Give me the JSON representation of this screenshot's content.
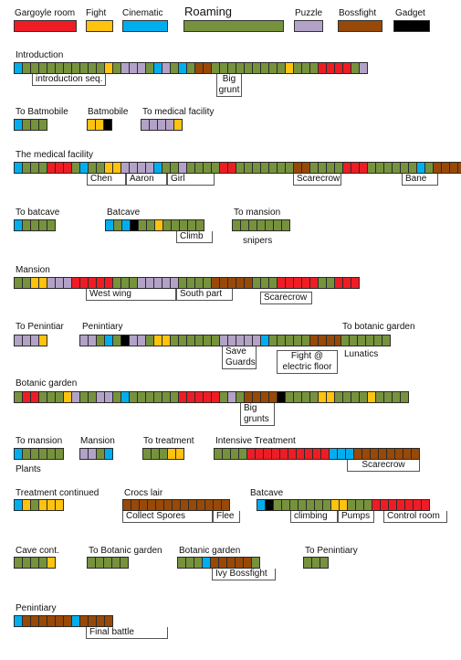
{
  "legend": [
    {
      "label": "Gargoyle room",
      "color": "#ee1c24"
    },
    {
      "label": "Fight",
      "color": "#ffc20e"
    },
    {
      "label": "Cinematic",
      "color": "#00aeef"
    },
    {
      "label": "Roaming",
      "color": "#76923c"
    },
    {
      "label": "Puzzle",
      "color": "#b3a2c7"
    },
    {
      "label": "Bossfight",
      "color": "#984807"
    },
    {
      "label": "Gadget",
      "color": "#000000"
    }
  ],
  "sections": [
    {
      "title": "Introduction",
      "seq": "CRRRRRRRRRRFRPPPRCPRCRBBRRRRRRRRRFRRRGGGGRP"
    },
    {
      "title": "To Batmobile",
      "seq": "CRRR"
    },
    {
      "title": "Batmobile",
      "seq": "FFX"
    },
    {
      "title": "To medical facility",
      "seq": "PPPPF"
    },
    {
      "title": "The medical facility",
      "seq": "CRRRGGGRCRRFFPPPPCRRPRRRRGGRRRRRRRBBRRRRGGGRRRRRRCRBBBB"
    },
    {
      "title": "To batcave",
      "seq": "CRRRR"
    },
    {
      "title": "Batcave",
      "seq": "CRCXRRFRRRRR"
    },
    {
      "title": "To mansion",
      "seq": "RRRRRRR"
    },
    {
      "title": "Mansion",
      "seq": "RRFFPPPGGGGGRRRPPPPPRRRRBBBBBRRRGGGGGRRGGG"
    },
    {
      "title": "To Penintiar",
      "seq": "PPPF"
    },
    {
      "title": "Penintiary",
      "seq": "PPRCRXPPRFFRRRRRRPPPPPCRRRRRBBBBC"
    },
    {
      "title": "To botanic garden",
      "seq": "RRRRRR"
    },
    {
      "title": "Botanic garden",
      "seq": "RGGRRRFPRRPPRCRRRRRRGGGGGRPRBBBBXRRRRFFRRRRFRRRR"
    },
    {
      "title": "To mansion",
      "seq": "CRRRRR"
    },
    {
      "title": "Mansion",
      "seq": "PPRC"
    },
    {
      "title": "To treatment",
      "seq": "RRRFF"
    },
    {
      "title": "Intensive Treatment",
      "seq": "RRRRGGGGGGGGGGCCCBBBBBBBB"
    },
    {
      "title": "Treatment continued",
      "seq": "CFRFFF"
    },
    {
      "title": "Crocs lair",
      "seq": "BBBBBBBBBBBBB"
    },
    {
      "title": "Batcave",
      "seq": "CXRRRRRRRFFRRRGGGGGGG"
    },
    {
      "title": "Cave cont.",
      "seq": "RRRRF"
    },
    {
      "title": "To Botanic garden",
      "seq": "RRRRR"
    },
    {
      "title": "Botanic garden",
      "seq": "RRRCBBBBBR"
    },
    {
      "title": "To Penintiary",
      "seq": "RRR"
    },
    {
      "title": "Penintiary",
      "seq": "CBBBBBBCBBBB"
    }
  ],
  "annotations": {
    "introduction_seq": "introduction seq.",
    "big_grunt": "Big grunt",
    "chen": "Chen",
    "aaron": "Aaron",
    "girl": "Girl",
    "scarecrow_1": "Scarecrow",
    "bane": "Bane",
    "climb": "Climb",
    "snipers": "snipers",
    "west_wing": "West wing",
    "south_part": "South part",
    "scarecrow_2": "Scarecrow",
    "save_guards": "Save Guards",
    "fight_electric": "Fight @ electric floor",
    "lunatics": "Lunatics",
    "big_grunts": "Big grunts",
    "plants": "Plants",
    "scarecrow_3": "Scarecrow",
    "collect_spores": "Collect Spores",
    "flee": "Flee",
    "climbing": "climbing",
    "pumps": "Pumps",
    "control_room": "Control room",
    "ivy_bossfight": "Ivy Bossfight",
    "final_battle": "Final battle"
  }
}
